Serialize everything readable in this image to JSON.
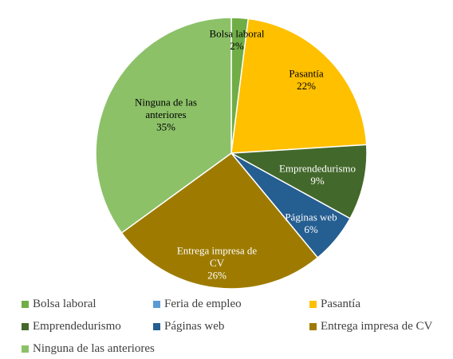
{
  "chart_data": {
    "type": "pie",
    "categories": [
      "Bolsa laboral",
      "Feria de empleo",
      "Pasantía",
      "Emprendedurismo",
      "Páginas web",
      "Entrega impresa de CV",
      "Ninguna de las anteriores"
    ],
    "values": [
      2,
      0,
      22,
      9,
      6,
      26,
      35
    ],
    "value_labels": [
      "2%",
      "",
      "22%",
      "9%",
      "6%",
      "26%",
      "35%"
    ],
    "slice_label_lines": [
      [
        "Bolsa laboral"
      ],
      [],
      [
        "Pasantía"
      ],
      [
        "Emprendedurismo"
      ],
      [
        "Páginas web"
      ],
      [
        "Entrega impresa de",
        "CV"
      ],
      [
        "Ninguna de las",
        "anteriores"
      ]
    ],
    "colors": [
      "#70AD47",
      "#5B9BD5",
      "#FFC000",
      "#43682B",
      "#255E91",
      "#9E7B00",
      "#8CC168"
    ],
    "label_colors": [
      "#000000",
      "#000000",
      "#000000",
      "#FFFFFF",
      "#FFFFFF",
      "#FFFFFF",
      "#000000"
    ],
    "start_angle_deg": 0,
    "legend_position": "bottom",
    "title": ""
  }
}
